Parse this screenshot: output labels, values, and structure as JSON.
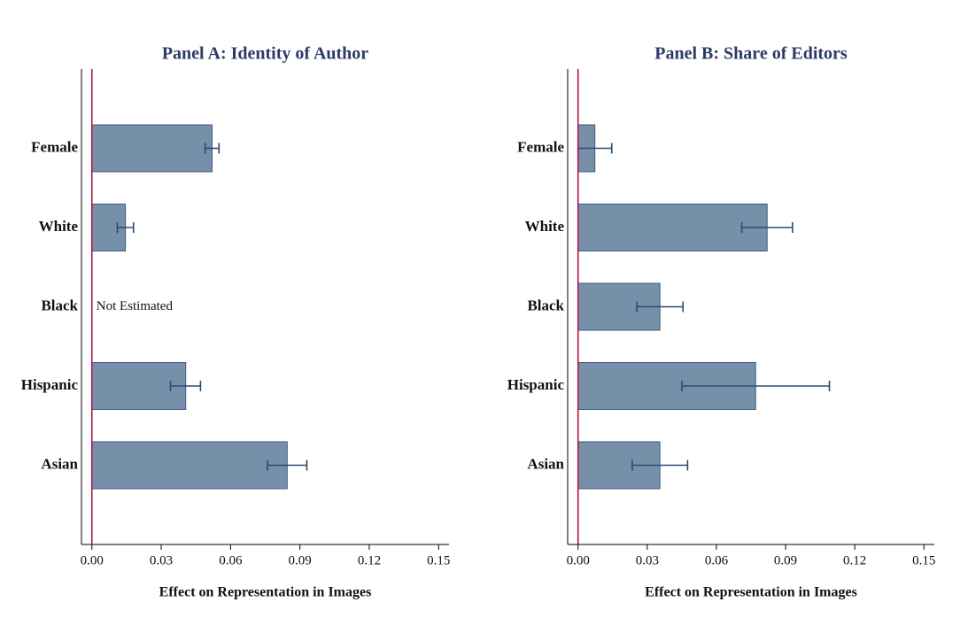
{
  "chart_data": [
    {
      "type": "bar",
      "orientation": "horizontal",
      "title": "Panel A: Identity of Author",
      "x_label": "Effect on Representation in Images",
      "categories": [
        "Female",
        "White",
        "Black",
        "Hispanic",
        "Asian"
      ],
      "values": [
        0.052,
        0.0145,
        null,
        0.0406,
        0.0845
      ],
      "ci_low": [
        0.049,
        0.011,
        null,
        0.034,
        0.076
      ],
      "ci_high": [
        0.055,
        0.018,
        null,
        0.047,
        0.093
      ],
      "annotation": "Not Estimated",
      "color": "#7690aa",
      "edge_color": "#3d5a80",
      "error_color": "#2c4a70",
      "zero_line_color": "#b0174a",
      "xlim": [
        -0.0045,
        0.1545
      ],
      "xticks": [
        {
          "value": 0,
          "label": "0.00"
        },
        {
          "value": 0.03,
          "label": "0.03"
        },
        {
          "value": 0.06,
          "label": "0.06"
        },
        {
          "value": 0.09,
          "label": "0.09"
        },
        {
          "value": 0.12,
          "label": "0.12"
        },
        {
          "value": 0.15,
          "label": "0.15"
        }
      ]
    },
    {
      "type": "bar",
      "orientation": "horizontal",
      "title": "Panel B: Share of Editors",
      "x_label": "Effect on Representation in Images",
      "categories": [
        "Female",
        "White",
        "Black",
        "Hispanic",
        "Asian"
      ],
      "values": [
        0.0073,
        0.082,
        0.0355,
        0.077,
        0.0355
      ],
      "ci_low": [
        0.0,
        0.071,
        0.0255,
        0.045,
        0.0235
      ],
      "ci_high": [
        0.0146,
        0.093,
        0.0455,
        0.109,
        0.0475
      ],
      "color": "#7690aa",
      "edge_color": "#3d5a80",
      "error_color": "#2c4a70",
      "zero_line_color": "#b0174a",
      "xlim": [
        -0.0045,
        0.1545
      ],
      "xticks": [
        {
          "value": 0,
          "label": "0.00"
        },
        {
          "value": 0.03,
          "label": "0.03"
        },
        {
          "value": 0.06,
          "label": "0.06"
        },
        {
          "value": 0.09,
          "label": "0.09"
        },
        {
          "value": 0.12,
          "label": "0.12"
        },
        {
          "value": 0.15,
          "label": "0.15"
        }
      ]
    }
  ]
}
